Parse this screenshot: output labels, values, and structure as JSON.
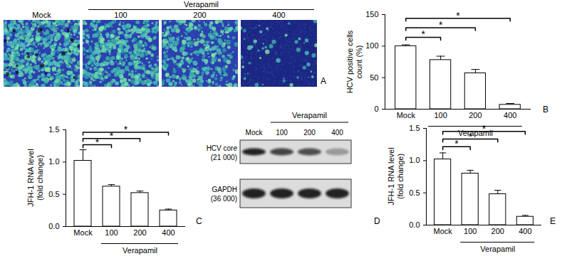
{
  "chart_data": [
    {
      "type": "bar",
      "panel": "B",
      "y_label": "HCV positive cells\ncount (%)",
      "categories": [
        "Mock",
        "100",
        "200",
        "400"
      ],
      "values": [
        100,
        78,
        57,
        7
      ],
      "errors": [
        2,
        6,
        6,
        2
      ],
      "color": "#ffffff",
      "ylim": [
        0,
        150
      ],
      "yticks": [
        0,
        50,
        100,
        150
      ],
      "group": {
        "label": "Verapamil",
        "categories": [
          "100",
          "200",
          "400"
        ]
      },
      "significance": [
        {
          "from": "Mock",
          "to": "100",
          "label": "*"
        },
        {
          "from": "Mock",
          "to": "200",
          "label": "*"
        },
        {
          "from": "Mock",
          "to": "400",
          "label": "*"
        }
      ]
    },
    {
      "type": "bar",
      "panel": "C",
      "y_label": "JFH-1 RNA level\n(fold change)",
      "categories": [
        "Mock",
        "100",
        "200",
        "400"
      ],
      "values": [
        1.02,
        0.62,
        0.52,
        0.25
      ],
      "errors": [
        0.17,
        0.03,
        0.03,
        0.02
      ],
      "color": "#ffffff",
      "ylim": [
        0,
        1.5
      ],
      "yticks": [
        {
          "value": 0,
          "label": "0.0"
        },
        0.5,
        {
          "value": 1,
          "label": "1.0"
        },
        1.5
      ],
      "group": {
        "label": "Verapamil",
        "categories": [
          "100",
          "200",
          "400"
        ]
      },
      "significance": [
        {
          "from": "Mock",
          "to": "100",
          "label": "*"
        },
        {
          "from": "Mock",
          "to": "200",
          "label": "*"
        },
        {
          "from": "Mock",
          "to": "400",
          "label": "*"
        }
      ]
    },
    {
      "type": "bar",
      "panel": "E",
      "y_label": "JFH-1 RNA level\n(fold change)",
      "categories": [
        "Mock",
        "100",
        "200",
        "400"
      ],
      "values": [
        1.02,
        0.8,
        0.48,
        0.13
      ],
      "errors": [
        0.1,
        0.05,
        0.06,
        0.02
      ],
      "color": "#ffffff",
      "ylim": [
        0,
        1.5
      ],
      "yticks": [
        {
          "value": 0,
          "label": "0.0"
        },
        0.5,
        {
          "value": 1,
          "label": "1.0"
        },
        1.5
      ],
      "group": {
        "label": "Verapamil",
        "categories": [
          "100",
          "200",
          "400"
        ]
      },
      "significance": [
        {
          "from": "Mock",
          "to": "100",
          "label": "*"
        },
        {
          "from": "Mock",
          "to": "200",
          "label": "*"
        },
        {
          "from": "Mock",
          "to": "400",
          "label": "*"
        }
      ]
    }
  ],
  "images": {
    "panel": "A",
    "categories": [
      "Mock",
      "100",
      "200",
      "400"
    ],
    "group": {
      "label": "Verapamil",
      "categories": [
        "100",
        "200",
        "400"
      ]
    }
  },
  "blot": {
    "panel": "D",
    "lanes": [
      "Mock",
      "100",
      "200",
      "400"
    ],
    "group": {
      "label": "Verapamil",
      "categories": [
        "100",
        "200",
        "400"
      ]
    },
    "rows": [
      {
        "label": "HCV core",
        "mass": "(21 000)",
        "intensity": [
          0.9,
          0.75,
          0.7,
          0.3
        ]
      },
      {
        "label": "GAPDH",
        "mass": "(36 000)",
        "intensity": [
          0.9,
          0.9,
          0.9,
          0.9
        ]
      }
    ]
  }
}
